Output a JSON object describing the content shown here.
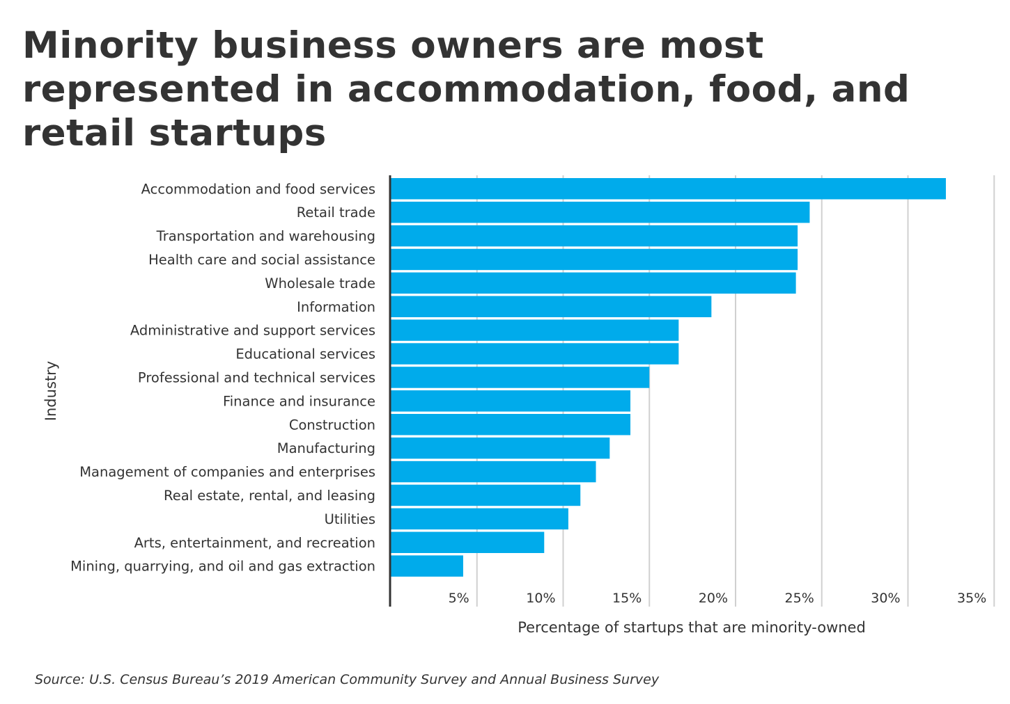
{
  "title": "Minority business owners are most represented in accommodation, food, and retail startups",
  "source": "Source:  U.S. Census Bureau’s 2019 American Community Survey and Annual Business Survey",
  "colors": {
    "bar": "#00ABEB",
    "grid": "#D0D0D0",
    "axis": "#333333"
  },
  "chart_data": {
    "type": "bar",
    "orientation": "horizontal",
    "xlabel": "Percentage of startups that are minority-owned",
    "ylabel": "Industry",
    "xlim": [
      0,
      35
    ],
    "xticks": [
      5,
      10,
      15,
      20,
      25,
      30,
      35
    ],
    "xtick_labels": [
      "5%",
      "10%",
      "15%",
      "20%",
      "25%",
      "30%",
      "35%"
    ],
    "grid": "vertical",
    "categories": [
      "Accommodation and food services",
      "Retail trade",
      "Transportation and warehousing",
      "Health care and social assistance",
      "Wholesale trade",
      "Information",
      "Administrative and support services",
      "Educational services",
      "Professional and technical services",
      "Finance and insurance",
      "Construction",
      "Manufacturing",
      "Management of companies and enterprises",
      "Real estate, rental, and leasing",
      "Utilities",
      "Arts, entertainment, and recreation",
      "Mining, quarrying, and oil and gas extraction"
    ],
    "values": [
      32.2,
      24.3,
      23.6,
      23.6,
      23.5,
      18.6,
      16.7,
      16.7,
      15.0,
      13.9,
      13.9,
      12.7,
      11.9,
      11.0,
      10.3,
      8.9,
      4.2
    ]
  }
}
